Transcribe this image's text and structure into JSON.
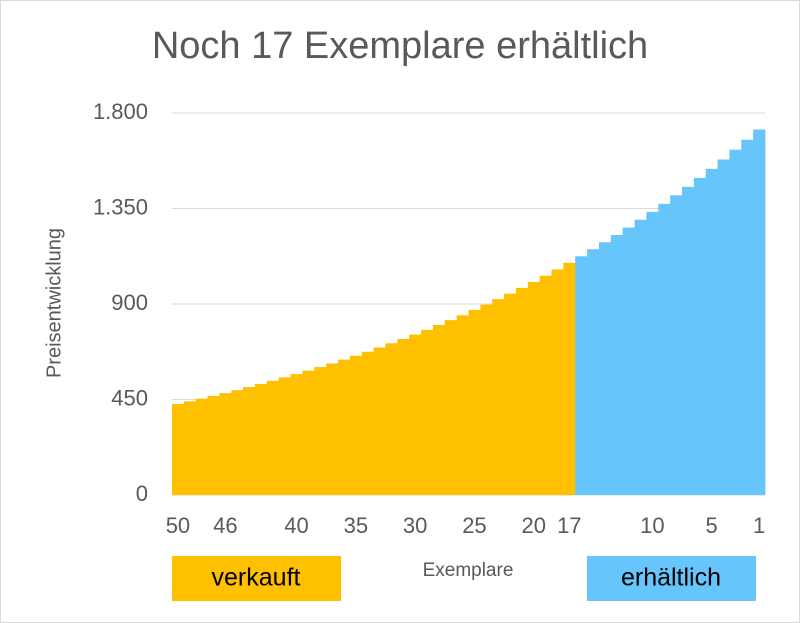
{
  "chart_data": {
    "type": "bar",
    "title": "Noch 17 Exemplare erhältlich",
    "y_label": "Preisentwicklung",
    "x_label": "Exemplare",
    "categories": [
      "50",
      null,
      null,
      null,
      "46",
      null,
      null,
      null,
      null,
      null,
      "40",
      null,
      null,
      null,
      null,
      "35",
      null,
      null,
      null,
      null,
      "30",
      null,
      null,
      null,
      null,
      "25",
      null,
      null,
      null,
      null,
      "20",
      null,
      null,
      "17",
      null,
      null,
      null,
      null,
      null,
      null,
      "10",
      null,
      null,
      null,
      null,
      "5",
      null,
      null,
      null,
      "1"
    ],
    "series": [
      {
        "name": "verkauft",
        "color": "#ffc000",
        "values": [
          429,
          441,
          454,
          467,
          480,
          494,
          509,
          523,
          538,
          554,
          570,
          586,
          603,
          620,
          638,
          656,
          675,
          695,
          715,
          735,
          756,
          778,
          801,
          824,
          847,
          872,
          897,
          923,
          949,
          976,
          1004,
          1033,
          1063,
          1094,
          null,
          null,
          null,
          null,
          null,
          null,
          null,
          null,
          null,
          null,
          null,
          null,
          null,
          null,
          null,
          null
        ]
      },
      {
        "name": "erhältlich",
        "color": "#66c5fa",
        "values": [
          null,
          null,
          null,
          null,
          null,
          null,
          null,
          null,
          null,
          null,
          null,
          null,
          null,
          null,
          null,
          null,
          null,
          null,
          null,
          null,
          null,
          null,
          null,
          null,
          null,
          null,
          null,
          null,
          null,
          null,
          null,
          null,
          null,
          null,
          1125,
          1158,
          1191,
          1225,
          1260,
          1297,
          1334,
          1372,
          1412,
          1452,
          1494,
          1537,
          1581,
          1627,
          1674,
          1722
        ]
      }
    ],
    "ylim": [
      0,
      1800
    ],
    "yticks": [
      0,
      450,
      900,
      {
        "value": 1350,
        "label": "1.350"
      },
      {
        "value": 1800,
        "label": "1.800"
      }
    ],
    "grid": true
  }
}
